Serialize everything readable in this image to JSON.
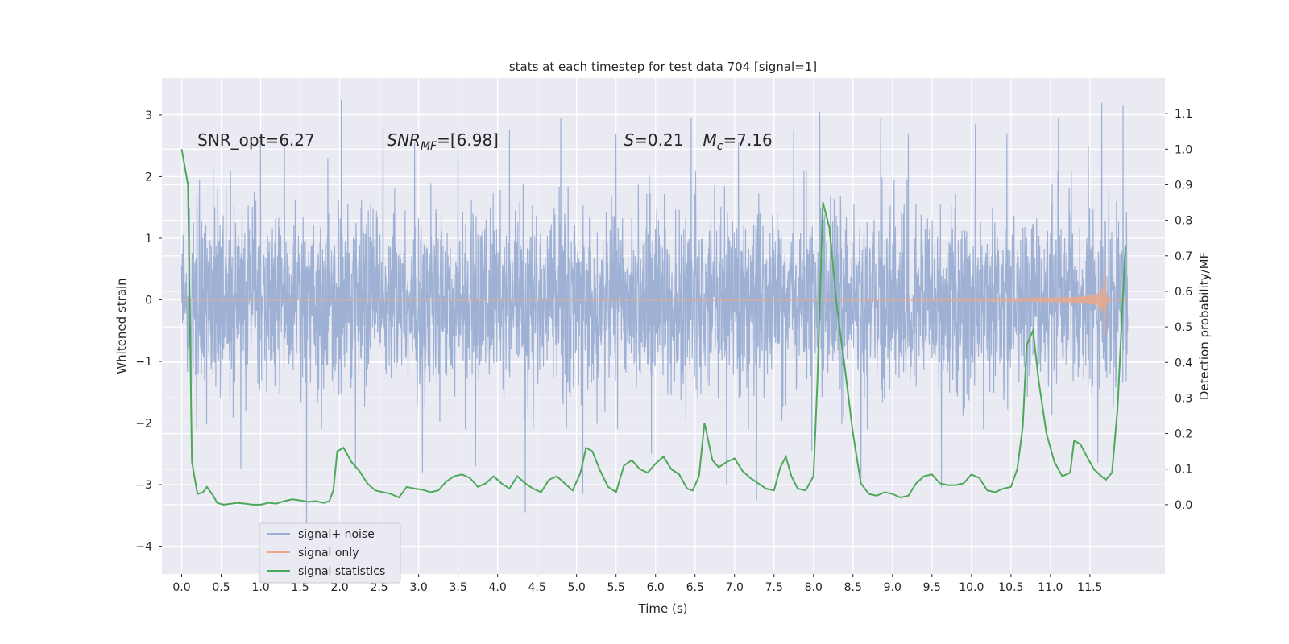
{
  "chart_data": {
    "type": "line",
    "title": "stats at each timestep for test data 704 [signal=1]",
    "xlabel": "Time (s)",
    "ylabel": "Whitened strain",
    "y2label": "Detection probability/MF",
    "xlim": [
      -0.25,
      12.45
    ],
    "ylim": [
      -4.45,
      3.6
    ],
    "y2lim": [
      -0.195,
      1.2
    ],
    "xticks": [
      0.0,
      0.5,
      1.0,
      1.5,
      2.0,
      2.5,
      3.0,
      3.5,
      4.0,
      4.5,
      5.0,
      5.5,
      6.0,
      6.5,
      7.0,
      7.5,
      8.0,
      8.5,
      9.0,
      9.5,
      10.0,
      10.5,
      11.0,
      11.5
    ],
    "xtick_labels": [
      "0.0",
      "0.5",
      "1.0",
      "1.5",
      "2.0",
      "2.5",
      "3.0",
      "3.5",
      "4.0",
      "4.5",
      "5.0",
      "5.5",
      "6.0",
      "6.5",
      "7.0",
      "7.5",
      "8.0",
      "8.5",
      "9.0",
      "9.5",
      "10.0",
      "10.5",
      "11.0",
      "11.5"
    ],
    "yticks": [
      3,
      2,
      1,
      0,
      -1,
      -2,
      -3,
      -4
    ],
    "ytick_labels": [
      "3",
      "2",
      "1",
      "0",
      "−1",
      "−2",
      "−3",
      "−4"
    ],
    "y2ticks": [
      1.1,
      1.0,
      0.9,
      0.8,
      0.7,
      0.6,
      0.5,
      0.4,
      0.3,
      0.2,
      0.1,
      0.0
    ],
    "y2tick_labels": [
      "1.1",
      "1.0",
      "0.9",
      "0.8",
      "0.7",
      "0.6",
      "0.5",
      "0.4",
      "0.3",
      "0.2",
      "0.1",
      "0.0"
    ],
    "grid": true,
    "legend_placement": "lower-left",
    "annotations": [
      {
        "label": "SNR_opt=6.27",
        "x": 0.2,
        "y": 2.5
      },
      {
        "label": "SNR",
        "sub": "MF",
        "value": "=[6.98]",
        "italic": true,
        "x": 2.6,
        "y": 2.5
      },
      {
        "label": "S",
        "value": "=0.21",
        "italic": true,
        "x": 5.6,
        "y": 2.5
      },
      {
        "label": "M",
        "sub": "c",
        "value": "=7.16",
        "italic": true,
        "x": 6.6,
        "y": 2.5
      }
    ],
    "series": [
      {
        "name": "signal+ noise",
        "color": "#9aaed3",
        "t_start": 0.0,
        "t_end": 11.98,
        "noise_sigma": 0.72,
        "noise_peaks": [
          [
            0.1,
            1.5
          ],
          [
            0.4,
            2.15
          ],
          [
            0.75,
            -2.75
          ],
          [
            1.0,
            2.7
          ],
          [
            1.3,
            2.65
          ],
          [
            1.58,
            -3.75
          ],
          [
            1.85,
            2.3
          ],
          [
            2.02,
            3.25
          ],
          [
            2.2,
            -2.75
          ],
          [
            2.55,
            2.8
          ],
          [
            2.95,
            2.55
          ],
          [
            3.05,
            -2.8
          ],
          [
            3.5,
            2.8
          ],
          [
            3.72,
            -2.7
          ],
          [
            4.15,
            2.75
          ],
          [
            4.35,
            -3.45
          ],
          [
            4.8,
            2.95
          ],
          [
            5.08,
            -3.15
          ],
          [
            5.5,
            2.7
          ],
          [
            5.95,
            -2.5
          ],
          [
            6.45,
            2.95
          ],
          [
            6.9,
            -3.0
          ],
          [
            7.05,
            2.55
          ],
          [
            7.28,
            -3.25
          ],
          [
            7.75,
            2.75
          ],
          [
            7.98,
            -2.45
          ],
          [
            8.08,
            3.05
          ],
          [
            8.6,
            -2.9
          ],
          [
            8.85,
            2.95
          ],
          [
            9.2,
            2.7
          ],
          [
            9.62,
            -3.05
          ],
          [
            10.05,
            2.85
          ],
          [
            10.45,
            2.7
          ],
          [
            11.1,
            2.95
          ],
          [
            11.48,
            2.5
          ],
          [
            11.6,
            -2.65
          ],
          [
            11.65,
            3.2
          ],
          [
            11.92,
            3.15
          ]
        ]
      },
      {
        "name": "signal only",
        "color": "#e8a98c",
        "t_start": 0.0,
        "t_end": 11.98,
        "t_merger": 11.68,
        "peak_amplitude": 0.6
      },
      {
        "name": "signal statistics",
        "color": "#4ea85a",
        "axis": "y2",
        "x": [
          0.0,
          0.08,
          0.13,
          0.2,
          0.27,
          0.32,
          0.4,
          0.45,
          0.53,
          0.6,
          0.7,
          0.8,
          0.9,
          1.0,
          1.1,
          1.2,
          1.3,
          1.4,
          1.5,
          1.6,
          1.7,
          1.8,
          1.87,
          1.92,
          1.97,
          2.05,
          2.15,
          2.25,
          2.35,
          2.45,
          2.55,
          2.65,
          2.75,
          2.85,
          2.95,
          3.05,
          3.15,
          3.25,
          3.35,
          3.45,
          3.55,
          3.65,
          3.75,
          3.85,
          3.95,
          4.05,
          4.15,
          4.25,
          4.35,
          4.45,
          4.55,
          4.65,
          4.75,
          4.85,
          4.95,
          5.05,
          5.12,
          5.2,
          5.3,
          5.4,
          5.5,
          5.6,
          5.7,
          5.8,
          5.9,
          6.0,
          6.1,
          6.2,
          6.3,
          6.4,
          6.47,
          6.55,
          6.62,
          6.72,
          6.8,
          6.9,
          7.0,
          7.1,
          7.2,
          7.3,
          7.4,
          7.5,
          7.58,
          7.65,
          7.72,
          7.8,
          7.9,
          8.0,
          8.05,
          8.12,
          8.2,
          8.3,
          8.4,
          8.5,
          8.6,
          8.7,
          8.8,
          8.9,
          9.0,
          9.1,
          9.2,
          9.3,
          9.4,
          9.5,
          9.6,
          9.7,
          9.8,
          9.9,
          10.0,
          10.1,
          10.2,
          10.3,
          10.4,
          10.5,
          10.58,
          10.65,
          10.7,
          10.78,
          10.85,
          10.95,
          11.05,
          11.15,
          11.25,
          11.3,
          11.38,
          11.45,
          11.55,
          11.62,
          11.7,
          11.78,
          11.85,
          11.95
        ],
        "y": [
          1.0,
          0.9,
          0.12,
          0.03,
          0.035,
          0.05,
          0.025,
          0.005,
          0.0,
          0.002,
          0.005,
          0.003,
          0.0,
          0.0,
          0.005,
          0.003,
          0.01,
          0.015,
          0.012,
          0.008,
          0.01,
          0.005,
          0.01,
          0.04,
          0.15,
          0.16,
          0.12,
          0.095,
          0.06,
          0.04,
          0.035,
          0.03,
          0.02,
          0.05,
          0.045,
          0.042,
          0.035,
          0.04,
          0.065,
          0.08,
          0.085,
          0.075,
          0.05,
          0.06,
          0.08,
          0.06,
          0.045,
          0.08,
          0.06,
          0.045,
          0.035,
          0.07,
          0.08,
          0.06,
          0.04,
          0.09,
          0.16,
          0.15,
          0.095,
          0.05,
          0.035,
          0.11,
          0.125,
          0.1,
          0.09,
          0.115,
          0.135,
          0.1,
          0.085,
          0.045,
          0.04,
          0.08,
          0.23,
          0.125,
          0.105,
          0.12,
          0.13,
          0.095,
          0.075,
          0.06,
          0.045,
          0.04,
          0.105,
          0.135,
          0.08,
          0.045,
          0.04,
          0.08,
          0.35,
          0.85,
          0.78,
          0.55,
          0.38,
          0.2,
          0.06,
          0.03,
          0.025,
          0.035,
          0.03,
          0.02,
          0.025,
          0.06,
          0.08,
          0.085,
          0.06,
          0.055,
          0.055,
          0.06,
          0.085,
          0.075,
          0.04,
          0.035,
          0.045,
          0.05,
          0.1,
          0.22,
          0.45,
          0.49,
          0.35,
          0.2,
          0.12,
          0.08,
          0.09,
          0.18,
          0.17,
          0.14,
          0.1,
          0.085,
          0.07,
          0.09,
          0.27,
          0.73
        ]
      }
    ]
  }
}
